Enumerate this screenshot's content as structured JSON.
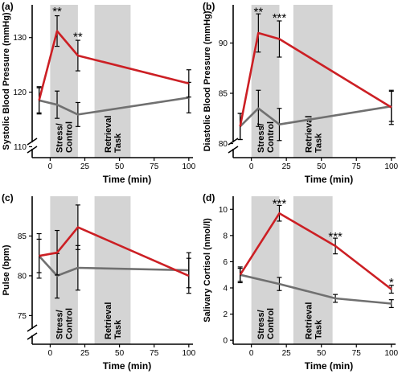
{
  "colors": {
    "stress": "#cc1f24",
    "control": "#707070",
    "shade": "#d4d4d4",
    "axis": "#000000"
  },
  "chart_data": [
    {
      "type": "line",
      "panel_label": "(a)",
      "xlabel": "Time (min)",
      "ylabel": "Systolic Blood Pressure (mmHg)",
      "x_ticks": [
        "0",
        "25",
        "50",
        "75",
        "100"
      ],
      "y_ticks": [
        "110",
        "120",
        "130"
      ],
      "xlim": [
        -13,
        103
      ],
      "ylim": [
        108,
        136
      ],
      "y_axis_break": true,
      "shaded_regions": [
        {
          "label": "Stress/ Control",
          "start": 0,
          "end": 20
        },
        {
          "label": "Retrieval Task",
          "start": 32,
          "end": 58
        }
      ],
      "series": [
        {
          "color_key": "stress",
          "x": [
            -8,
            5,
            20,
            100
          ],
          "y": [
            118.5,
            131.2,
            126.7,
            121.6
          ],
          "err": [
            2.5,
            2.8,
            2.8,
            2.5
          ]
        },
        {
          "color_key": "control",
          "x": [
            -8,
            5,
            20,
            100
          ],
          "y": [
            118.5,
            117.7,
            115.9,
            119
          ],
          "err": [
            2.3,
            2.5,
            2.2,
            2.8
          ]
        }
      ],
      "annotations": [
        {
          "text": "**",
          "x": 5,
          "y": 135
        },
        {
          "text": "**",
          "x": 20,
          "y": 130.3
        }
      ]
    },
    {
      "type": "line",
      "panel_label": "(b)",
      "xlabel": "Time (min)",
      "ylabel": "Diastolic Blood Pressure (mmHg)",
      "x_ticks": [
        "0",
        "25",
        "50",
        "75",
        "100"
      ],
      "y_ticks": [
        "80",
        "85",
        "90"
      ],
      "xlim": [
        -13,
        103
      ],
      "ylim": [
        78.6,
        93.8
      ],
      "y_axis_break": true,
      "shaded_regions": [
        {
          "label": "Stress/ Control",
          "start": 0,
          "end": 20
        },
        {
          "label": "Retrieval Task",
          "start": 30,
          "end": 58
        }
      ],
      "series": [
        {
          "color_key": "stress",
          "x": [
            -8,
            5,
            20,
            100
          ],
          "y": [
            81.7,
            91,
            90.4,
            83.6
          ],
          "err": [
            1.3,
            1.9,
            1.8,
            1.7
          ]
        },
        {
          "color_key": "control",
          "x": [
            -8,
            5,
            20,
            100
          ],
          "y": [
            81.7,
            83.5,
            81.9,
            83.7
          ],
          "err": [
            1.3,
            1.8,
            1.6,
            1.5
          ]
        }
      ],
      "annotations": [
        {
          "text": "**",
          "x": 5,
          "y": 93.2
        },
        {
          "text": "***",
          "x": 20,
          "y": 92.6
        }
      ]
    },
    {
      "type": "line",
      "panel_label": "(c)",
      "xlabel": "Time (min)",
      "ylabel": "Pulse (bpm)",
      "x_ticks": [
        "0",
        "25",
        "50",
        "75",
        "100"
      ],
      "y_ticks": [
        "75",
        "80",
        "85"
      ],
      "xlim": [
        -13,
        103
      ],
      "ylim": [
        71.4,
        90
      ],
      "y_axis_break": true,
      "shaded_regions": [
        {
          "label": "Stress/ Control",
          "start": 0,
          "end": 20
        },
        {
          "label": "Retrieval Task",
          "start": 32,
          "end": 58
        }
      ],
      "series": [
        {
          "color_key": "stress",
          "x": [
            -8,
            5,
            20,
            100
          ],
          "y": [
            82.5,
            82.9,
            86.1,
            80
          ],
          "err": [
            2.8,
            2.8,
            2.8,
            2.2
          ]
        },
        {
          "color_key": "control",
          "x": [
            -8,
            5,
            20,
            100
          ],
          "y": [
            82.5,
            80,
            81,
            80.7
          ],
          "err": [
            2.1,
            2.8,
            2.8,
            2.2
          ]
        }
      ],
      "annotations": []
    },
    {
      "type": "line",
      "panel_label": "(d)",
      "xlabel": "Time (min)",
      "ylabel": "Salivary Cortisol (nmol/l)",
      "x_ticks": [
        "0",
        "25",
        "50",
        "75",
        "100"
      ],
      "y_ticks": [
        "0",
        "2",
        "4",
        "6",
        "8",
        "10"
      ],
      "xlim": [
        -13,
        103
      ],
      "ylim": [
        -0.3,
        11
      ],
      "y_axis_break": false,
      "shaded_regions": [
        {
          "label": "Stress/ Control",
          "start": 0,
          "end": 20
        },
        {
          "label": "Retrieval Task",
          "start": 30,
          "end": 58
        }
      ],
      "series": [
        {
          "color_key": "stress",
          "x": [
            -8,
            20,
            60,
            100
          ],
          "y": [
            5.0,
            9.7,
            7.2,
            3.9
          ],
          "err": [
            0.6,
            0.6,
            0.6,
            0.3
          ]
        },
        {
          "color_key": "control",
          "x": [
            -8,
            20,
            60,
            100
          ],
          "y": [
            5.0,
            4.3,
            3.2,
            2.8
          ],
          "err": [
            0.5,
            0.5,
            0.3,
            0.3
          ]
        }
      ],
      "annotations": [
        {
          "text": "***",
          "x": 20,
          "y": 10.5
        },
        {
          "text": "***",
          "x": 60,
          "y": 8.0
        },
        {
          "text": "*",
          "x": 100,
          "y": 4.5
        }
      ]
    }
  ]
}
